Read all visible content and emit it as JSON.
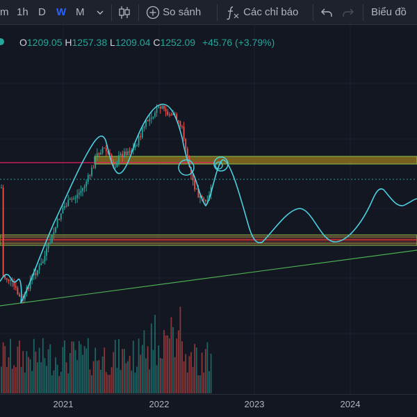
{
  "toolbar": {
    "interval_minutes_label": "m",
    "interval_hour_label": "1h",
    "interval_day_label": "D",
    "interval_week_label": "W",
    "interval_month_label": "M",
    "compare_label": "So sánh",
    "indicators_label": "Các chỉ báo",
    "chart_type_label": "Biểu đồ",
    "active_interval": "W"
  },
  "legend": {
    "open_label": "O",
    "open": "1209.05",
    "high_label": "H",
    "high": "1257.38",
    "low_label": "L",
    "low": "1209.04",
    "close_label": "C",
    "close": "1252.09",
    "change": "+45.76 (+3.79%)"
  },
  "xaxis": {
    "labels": [
      "2021",
      "2022",
      "2023",
      "2024"
    ]
  },
  "colors": {
    "background": "#131722",
    "up": "#26a69a",
    "down": "#ef5350",
    "projection": "#4dd0e1",
    "trendline": "#4caf50",
    "resistance_line": "#e91e63",
    "zone_fill": "#8a6d1e",
    "zone_border": "#8bc34a"
  },
  "icons": {
    "dropdown": "chevron-down-icon",
    "candles": "candlestick-icon",
    "compare": "plus-circle-icon",
    "indicators": "function-icon",
    "undo": "undo-icon",
    "redo": "redo-icon"
  }
}
